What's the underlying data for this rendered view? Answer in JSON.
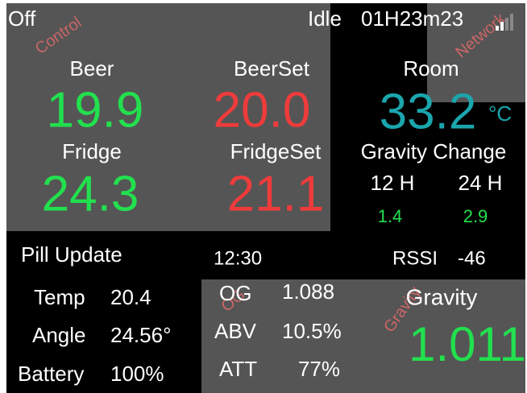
{
  "status": {
    "mode": "Off",
    "state": "Idle",
    "timer": "01H23m23"
  },
  "watermarks": {
    "control": "Control",
    "network": "Network",
    "og": "OG",
    "gravity": "Gravity"
  },
  "control": {
    "beer_label": "Beer",
    "beer": "19.9",
    "beerset_label": "BeerSet",
    "beerset": "20.0",
    "fridge_label": "Fridge",
    "fridge": "24.3",
    "fridgeset_label": "FridgeSet",
    "fridgeset": "21.1"
  },
  "room": {
    "label": "Room",
    "value": "33.2",
    "unit": "°C"
  },
  "gravity_change": {
    "title": "Gravity Change",
    "h12_label": "12 H",
    "h12": "1.4",
    "h24_label": "24 H",
    "h24": "2.9"
  },
  "pill": {
    "title": "Pill Update",
    "time": "12:30",
    "rssi_label": "RSSI",
    "rssi": "-46",
    "temp_label": "Temp",
    "temp": "20.4",
    "angle_label": "Angle",
    "angle": "24.56°",
    "battery_label": "Battery",
    "battery": "100%"
  },
  "beer_stats": {
    "og_label": "OG",
    "og": "1.088",
    "abv_label": "ABV",
    "abv": "10.5%",
    "att_label": "ATT",
    "att": "77%",
    "gravity_label": "Gravity",
    "gravity": "1.011"
  }
}
